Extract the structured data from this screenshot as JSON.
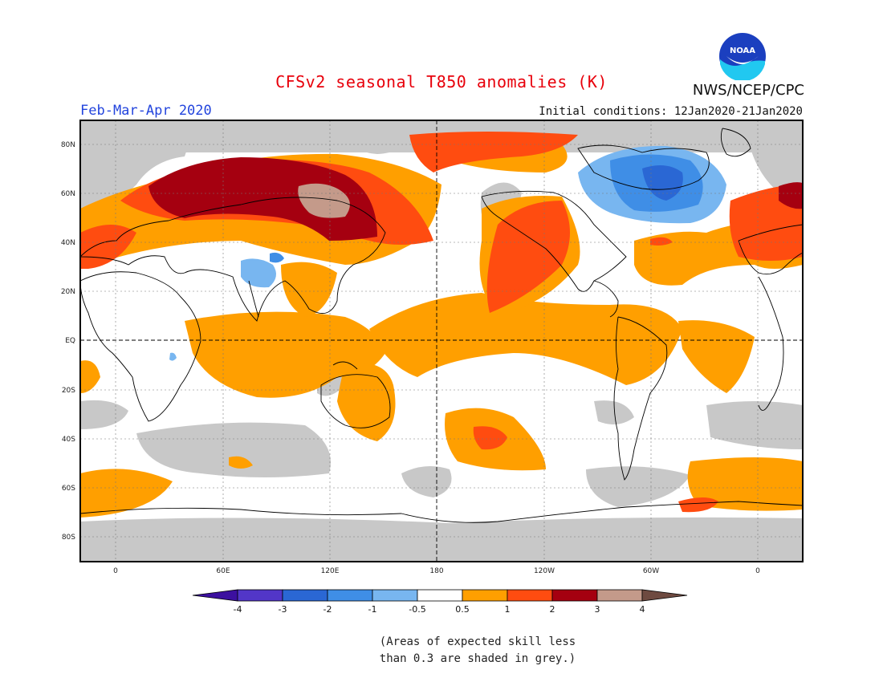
{
  "header": {
    "title": "CFSv2 seasonal T850 anomalies (K)",
    "period": "Feb-Mar-Apr 2020",
    "initial_conditions": "Initial conditions: 12Jan2020-21Jan2020",
    "agency": "NWS/NCEP/CPC",
    "logo_text": "NOAA"
  },
  "axes": {
    "lat_labels": [
      "80N",
      "60N",
      "40N",
      "20N",
      "EQ",
      "20S",
      "40S",
      "60S",
      "80S"
    ],
    "lon_labels": [
      "0",
      "60E",
      "120E",
      "180",
      "120W",
      "60W",
      "0"
    ]
  },
  "legend": {
    "labels": [
      "-4",
      "-3",
      "-2",
      "-1",
      "-0.5",
      "0.5",
      "1",
      "2",
      "3",
      "4"
    ],
    "colors": [
      "#3c109f",
      "#5236c8",
      "#2a67d4",
      "#3f8ee6",
      "#78b6f0",
      "#ffffff",
      "#ff9f00",
      "#ff4c10",
      "#a50010",
      "#c49a8a",
      "#6e4a40"
    ]
  },
  "colors": {
    "grey_skill": "#c8c8c8",
    "anom_05_1": "#ff9f00",
    "anom_1_2": "#ff4c10",
    "anom_2_3": "#a50010",
    "anom_3_4": "#c49a8a",
    "cold_05_1": "#78b6f0",
    "cold_1_2": "#3f8ee6",
    "cold_2_3": "#2a67d4"
  },
  "note": {
    "line1": "(Areas of expected skill less",
    "line2": "than 0.3 are shaded in grey.)"
  }
}
